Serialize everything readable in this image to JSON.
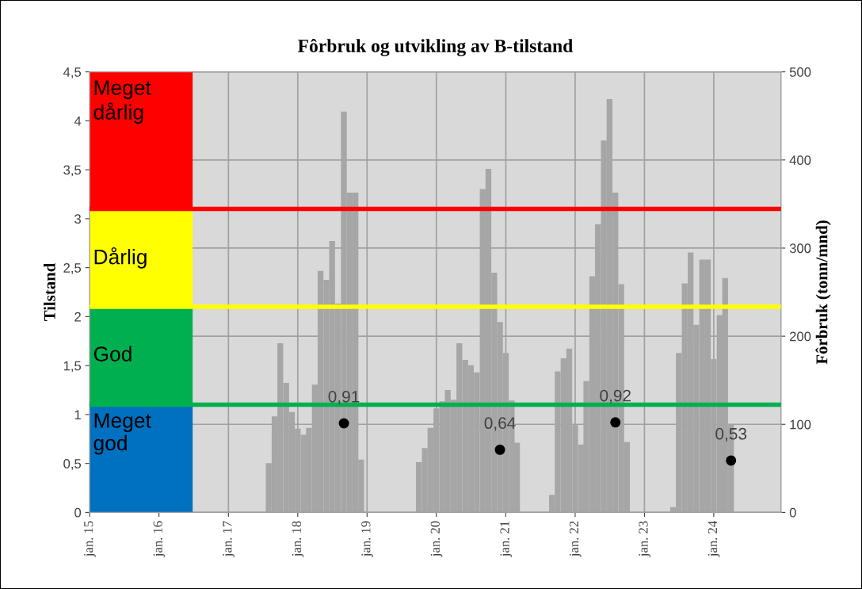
{
  "chart_data": {
    "type": "bar",
    "title": "Fôrbruk og utvikling av B-tilstand",
    "ylabel": "Tilstand",
    "y2label": "Fôrbruk (tonn/mnd)",
    "series": [
      {
        "axis": "y2",
        "color": "#a6a6a6",
        "x": [
          "2017-08",
          "2017-09",
          "2017-10",
          "2017-11",
          "2017-12",
          "2018-01",
          "2018-02",
          "2018-03",
          "2018-04",
          "2018-05",
          "2018-06",
          "2018-07",
          "2018-08",
          "2018-09",
          "2018-10",
          "2018-11",
          "2018-12",
          "2019-10",
          "2019-11",
          "2019-12",
          "2020-01",
          "2020-02",
          "2020-03",
          "2020-04",
          "2020-05",
          "2020-06",
          "2020-07",
          "2020-08",
          "2020-09",
          "2020-10",
          "2020-11",
          "2020-12",
          "2021-01",
          "2021-02",
          "2021-03",
          "2021-09",
          "2021-10",
          "2021-11",
          "2021-12",
          "2022-01",
          "2022-02",
          "2022-03",
          "2022-04",
          "2022-05",
          "2022-06",
          "2022-07",
          "2022-08",
          "2022-09",
          "2022-10",
          "2023-06",
          "2023-07",
          "2023-08",
          "2023-09",
          "2023-10",
          "2023-11",
          "2023-12",
          "2024-01",
          "2024-02",
          "2024-03",
          "2024-04"
        ],
        "values": [
          56,
          109,
          192,
          147,
          114,
          95,
          88,
          96,
          145,
          274,
          264,
          308,
          237,
          455,
          363,
          363,
          60,
          57,
          73,
          96,
          118,
          126,
          139,
          128,
          192,
          173,
          167,
          159,
          367,
          390,
          272,
          216,
          181,
          127,
          79,
          20,
          160,
          175,
          186,
          99,
          77,
          149,
          268,
          327,
          422,
          469,
          363,
          259,
          80,
          6,
          181,
          260,
          295,
          213,
          287,
          287,
          174,
          224,
          266,
          100
        ]
      },
      {
        "type": "scatter",
        "axis": "y",
        "color": "#000000",
        "x": [
          "2018-09",
          "2020-12",
          "2022-08",
          "2024-04"
        ],
        "values": [
          0.91,
          0.64,
          0.92,
          0.53
        ],
        "value_labels": [
          "0,91",
          "0,64",
          "0,92",
          "0,53"
        ]
      }
    ],
    "xlim": [
      "2015-01",
      "2024-12-20"
    ],
    "xticks": [
      {
        "value": "2015-01",
        "label": "jan. 15"
      },
      {
        "value": "2016-01",
        "label": "jan. 16"
      },
      {
        "value": "2017-01",
        "label": "jan. 17"
      },
      {
        "value": "2018-01",
        "label": "jan. 18"
      },
      {
        "value": "2019-01",
        "label": "jan. 19"
      },
      {
        "value": "2020-01",
        "label": "jan. 20"
      },
      {
        "value": "2021-01",
        "label": "jan. 21"
      },
      {
        "value": "2022-01",
        "label": "jan. 22"
      },
      {
        "value": "2023-01",
        "label": "jan. 23"
      },
      {
        "value": "2024-01",
        "label": "jan. 24"
      }
    ],
    "ylim": [
      0,
      4.5
    ],
    "yticks": [
      0,
      {
        "value": 0.5,
        "label": "0,5"
      },
      1,
      {
        "value": 1.5,
        "label": "1,5"
      },
      2,
      {
        "value": 2.5,
        "label": "2,5"
      },
      3,
      {
        "value": 3.5,
        "label": "3,5"
      },
      4,
      {
        "value": 4.5,
        "label": "4,5"
      }
    ],
    "y2lim": [
      0,
      500
    ],
    "y2ticks": [
      0,
      100,
      200,
      300,
      400,
      500
    ],
    "bands": [
      {
        "axis": "y",
        "from": 3.1,
        "to": 4.5,
        "label": "Meget\ndårlig",
        "color": "#ff0000"
      },
      {
        "axis": "y",
        "from": 2.1,
        "to": 3.1,
        "label": "Dårlig",
        "color": "#ffff00"
      },
      {
        "axis": "y",
        "from": 1.1,
        "to": 2.1,
        "label": "God",
        "color": "#00b050"
      },
      {
        "axis": "y",
        "from": 0,
        "to": 1.1,
        "label": "Meget\ngod",
        "color": "#0070c0"
      }
    ],
    "ref_lines": [
      {
        "axis": "y",
        "value": 3.1,
        "color": "#ff0000"
      },
      {
        "axis": "y",
        "value": 2.1,
        "color": "#ffff00"
      },
      {
        "axis": "y",
        "value": 1.1,
        "color": "#00b050"
      }
    ],
    "grid": true,
    "marker": "circle",
    "legend": false
  }
}
